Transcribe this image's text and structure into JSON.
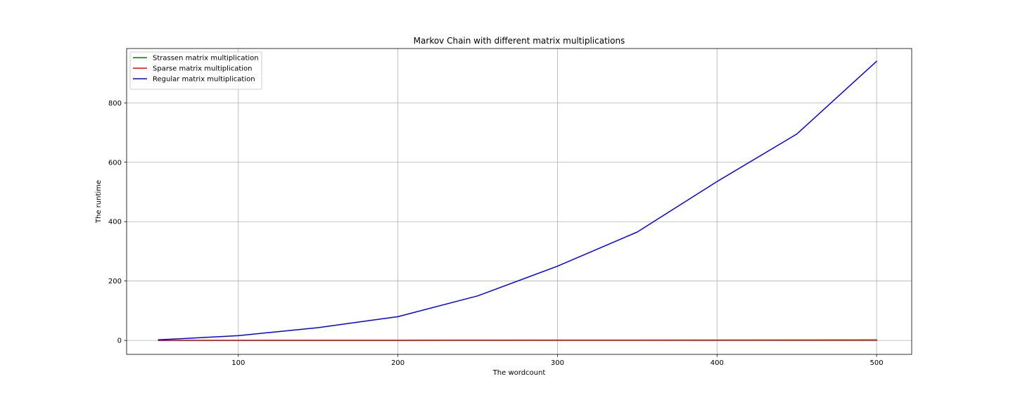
{
  "chart_data": {
    "type": "line",
    "title": "Markov Chain with different matrix multiplications",
    "xlabel": "The wordcount",
    "ylabel": "The runtime",
    "x": [
      50,
      100,
      150,
      200,
      250,
      300,
      350,
      400,
      450,
      500
    ],
    "xlim": [
      30,
      522
    ],
    "ylim": [
      -47,
      983
    ],
    "xticks": [
      100,
      200,
      300,
      400,
      500
    ],
    "yticks": [
      0,
      200,
      400,
      600,
      800
    ],
    "grid": true,
    "legend_position": "upper-left",
    "series": [
      {
        "name": "Strassen matrix multiplication",
        "color": "#008000",
        "values": [
          0.1,
          0.2,
          0.3,
          0.5,
          0.7,
          0.9,
          1.1,
          1.3,
          1.5,
          1.7
        ]
      },
      {
        "name": "Sparse matrix multiplication",
        "color": "#ff0000",
        "values": [
          0.05,
          0.1,
          0.15,
          0.2,
          0.25,
          0.3,
          0.35,
          0.4,
          0.45,
          0.5
        ]
      },
      {
        "name": "Regular matrix multiplication",
        "color": "#0000ff",
        "values": [
          2,
          16,
          43,
          80,
          150,
          250,
          365,
          535,
          695,
          940
        ]
      }
    ]
  }
}
